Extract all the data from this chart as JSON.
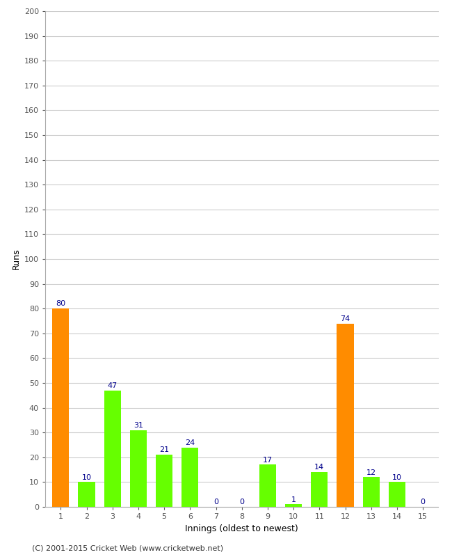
{
  "title": "",
  "xlabel": "Innings (oldest to newest)",
  "ylabel": "Runs",
  "categories": [
    "1",
    "2",
    "3",
    "4",
    "5",
    "6",
    "7",
    "8",
    "9",
    "10",
    "11",
    "12",
    "13",
    "14",
    "15"
  ],
  "values": [
    80,
    10,
    47,
    31,
    21,
    24,
    0,
    0,
    17,
    1,
    14,
    74,
    12,
    10,
    0
  ],
  "bar_colors": [
    "#FF8C00",
    "#66FF00",
    "#66FF00",
    "#66FF00",
    "#66FF00",
    "#66FF00",
    "#66FF00",
    "#66FF00",
    "#66FF00",
    "#66FF00",
    "#66FF00",
    "#FF8C00",
    "#66FF00",
    "#66FF00",
    "#66FF00"
  ],
  "value_label_color": "#00008B",
  "ylim": [
    0,
    200
  ],
  "yticks": [
    0,
    10,
    20,
    30,
    40,
    50,
    60,
    70,
    80,
    90,
    100,
    110,
    120,
    130,
    140,
    150,
    160,
    170,
    180,
    190,
    200
  ],
  "grid_color": "#cccccc",
  "background_color": "#ffffff",
  "footer_text": "(C) 2001-2015 Cricket Web (www.cricketweb.net)",
  "axis_label_fontsize": 9,
  "tick_fontsize": 8,
  "value_label_fontsize": 8,
  "footer_fontsize": 8,
  "bar_width": 0.65
}
